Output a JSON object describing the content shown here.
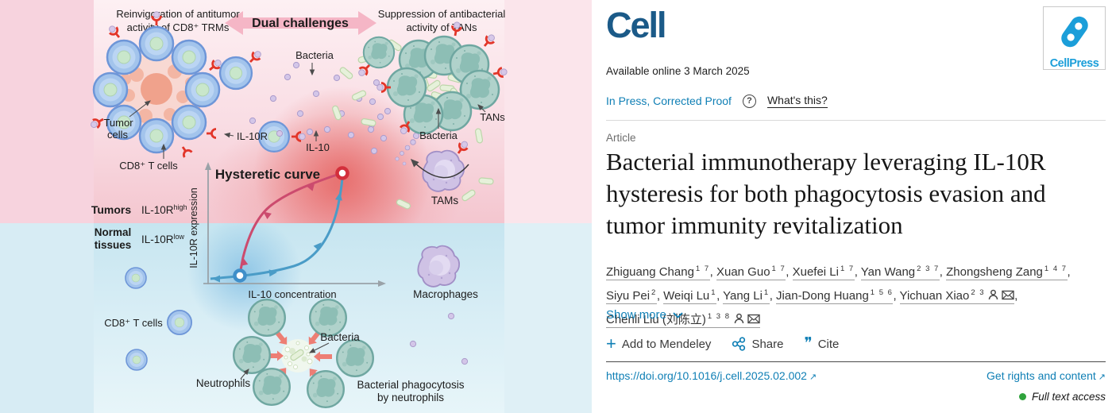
{
  "header": {
    "logo": "Cell",
    "cellpress": "CellPress",
    "available": "Available online 3 March 2025",
    "in_press": "In Press, Corrected Proof",
    "whats_this": "What's this?"
  },
  "article": {
    "type": "Article",
    "title_lines": [
      "Bacterial immunotherapy leveraging IL-10R",
      "hysteresis for both phagocytosis evasion and",
      "tumor immunity revitalization"
    ],
    "show_more": "Show more"
  },
  "authors": [
    {
      "name": "Zhiguang Chang",
      "sup": "1 7",
      "person": false,
      "email": false
    },
    {
      "name": "Xuan Guo",
      "sup": "1 7",
      "person": false,
      "email": false
    },
    {
      "name": "Xuefei Li",
      "sup": "1 7",
      "person": false,
      "email": false
    },
    {
      "name": "Yan Wang",
      "sup": "2 3 7",
      "person": false,
      "email": false
    },
    {
      "name": "Zhongsheng Zang",
      "sup": "1 4 7",
      "person": false,
      "email": false
    },
    {
      "name": "Siyu Pei",
      "sup": "2",
      "person": false,
      "email": false
    },
    {
      "name": "Weiqi Lu",
      "sup": "1",
      "person": false,
      "email": false
    },
    {
      "name": "Yang Li",
      "sup": "1",
      "person": false,
      "email": false
    },
    {
      "name": "Jian-Dong Huang",
      "sup": "1 5 6",
      "person": false,
      "email": false
    },
    {
      "name": "Yichuan Xiao",
      "sup": "2 3",
      "person": true,
      "email": true
    },
    {
      "name": "Chenli Liu (刘陈立)",
      "sup": "1 3 8",
      "person": true,
      "email": true
    }
  ],
  "actions": {
    "mendeley": "Add to Mendeley",
    "share": "Share",
    "cite": "Cite",
    "cite_glyph": "❞"
  },
  "footer": {
    "doi": "https://doi.org/10.1016/j.cell.2025.02.002",
    "rights": "Get rights and content",
    "access": "Full text access",
    "ext_arrow": "↗"
  },
  "abstract": {
    "left_caption_l1": "Reinvigoration of antitumor",
    "left_caption_l2": "activity of CD8⁺ TRMs",
    "banner": "Dual challenges",
    "right_caption_l1": "Suppression of antibacterial",
    "right_caption_l2": "activity of TANs",
    "bacteria_top": "Bacteria",
    "tumor_l1": "Tumor",
    "tumor_l2": "cells",
    "il10r": "IL-10R",
    "il10": "IL-10",
    "cd8_top": "CD8⁺ T cells",
    "bacteria_mid": "Bacteria",
    "tans": "TANs",
    "tams": "TAMs",
    "hysteretic": "Hysteretic curve",
    "y_axis": "IL-10R expression",
    "x_axis": "IL-10 concentration",
    "tumors": "Tumors",
    "il10r_high_base": "IL-10R",
    "il10r_high_sup": "high",
    "normal_l1": "Normal",
    "normal_l2": "tissues",
    "il10r_low_base": "IL-10R",
    "il10r_low_sup": "low",
    "cd8_bottom": "CD8⁺ T cells",
    "macrophages": "Macrophages",
    "neutrophils": "Neutrophils",
    "bacteria_bottom": "Bacteria",
    "phago_l1": "Bacterial phagocytosis",
    "phago_l2": "by neutrophils"
  },
  "colors": {
    "link_blue": "#0f7fb5",
    "cell_logo_blue": "#1b5a88",
    "cellpress_blue": "#1b9ed9",
    "access_green": "#2fa33c",
    "banner_pink": "#f5b6c6",
    "tumors_red": "#c22127",
    "normal_blue": "#1472b8",
    "curve_red": "#cc4b6e",
    "curve_teal": "#4a9cc7"
  }
}
